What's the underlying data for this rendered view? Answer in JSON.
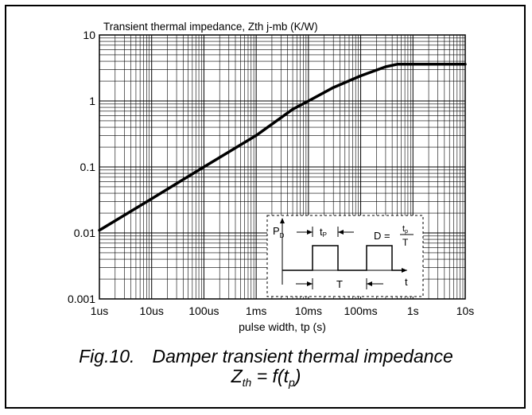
{
  "chart_data": {
    "type": "line",
    "title": "Transient thermal impedance, Zth j-mb (K/W)",
    "xlabel": "pulse width, tp (s)",
    "ylabel": "Transient thermal impedance, Zth j-mb (K/W)",
    "xscale": "log",
    "yscale": "log",
    "xlim": [
      1e-06,
      10
    ],
    "ylim": [
      0.001,
      10
    ],
    "grid": true,
    "x_tick_values": [
      1e-06,
      1e-05,
      0.0001,
      0.001,
      0.01,
      0.1,
      1,
      10
    ],
    "x_tick_labels": [
      "1us",
      "10us",
      "100us",
      "1ms",
      "10ms",
      "100ms",
      "1s",
      "10s"
    ],
    "y_tick_values": [
      0.001,
      0.01,
      0.1,
      1,
      10
    ],
    "y_tick_labels": [
      "0.001",
      "0.01",
      "0.1",
      "1",
      "10"
    ],
    "series": [
      {
        "values": [
          {
            "x": 1e-06,
            "y": 0.011
          },
          {
            "x": 1e-05,
            "y": 0.033
          },
          {
            "x": 0.0001,
            "y": 0.1
          },
          {
            "x": 0.001,
            "y": 0.3
          },
          {
            "x": 0.005,
            "y": 0.75
          },
          {
            "x": 0.01,
            "y": 1.0
          },
          {
            "x": 0.03,
            "y": 1.6
          },
          {
            "x": 0.1,
            "y": 2.4
          },
          {
            "x": 0.3,
            "y": 3.3
          },
          {
            "x": 0.5,
            "y": 3.6
          },
          {
            "x": 10,
            "y": 3.6
          }
        ]
      }
    ]
  },
  "inset": {
    "pd_label": "P",
    "pd_sub": "D",
    "tp_label": "t",
    "tp_sub": "P",
    "d_label": "D =",
    "d_num_main": "t",
    "d_num_sub": "p",
    "d_den": "T",
    "t_axis_label": "t",
    "period_label": "T"
  },
  "caption": {
    "number": "Fig.10.",
    "title": "Damper transient thermal impedance",
    "eq_z": "Z",
    "eq_z_sub": "th",
    "eq_mid": " = f(t",
    "eq_t_sub": "p",
    "eq_end": ")"
  }
}
